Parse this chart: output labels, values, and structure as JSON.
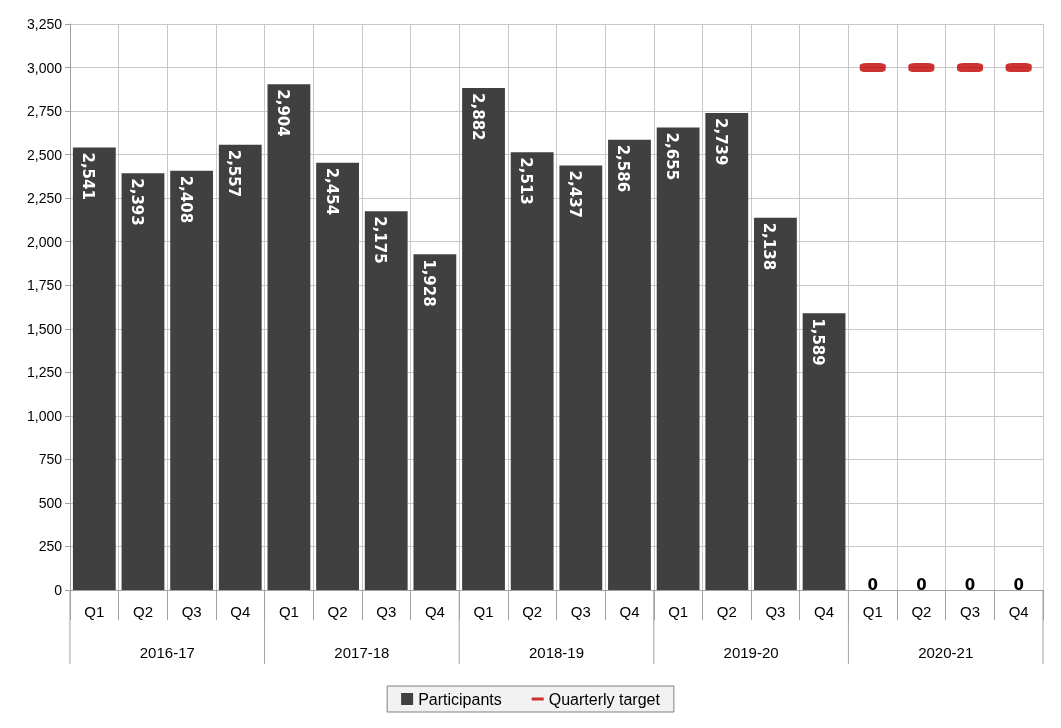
{
  "chart_data": {
    "type": "bar",
    "categories": [
      "Q1",
      "Q2",
      "Q3",
      "Q4",
      "Q1",
      "Q2",
      "Q3",
      "Q4",
      "Q1",
      "Q2",
      "Q3",
      "Q4",
      "Q1",
      "Q2",
      "Q3",
      "Q4",
      "Q1",
      "Q2",
      "Q3",
      "Q4"
    ],
    "series": [
      {
        "name": "Participants",
        "color": "#404040",
        "values": [
          2541,
          2393,
          2408,
          2557,
          2904,
          2454,
          2175,
          1928,
          2882,
          2513,
          2437,
          2586,
          2655,
          2739,
          2138,
          1589,
          0,
          0,
          0,
          0
        ],
        "value_labels": [
          "2,541",
          "2,393",
          "2,408",
          "2,557",
          "2,904",
          "2,454",
          "2,175",
          "1,928",
          "2,882",
          "2,513",
          "2,437",
          "2,586",
          "2,655",
          "2,739",
          "2,138",
          "1,589",
          "0",
          "0",
          "0",
          "0"
        ]
      },
      {
        "name": "Quarterly target",
        "type": "scatter",
        "color": "#c00000",
        "values": [
          null,
          null,
          null,
          null,
          null,
          null,
          null,
          null,
          null,
          null,
          null,
          null,
          null,
          null,
          null,
          null,
          3000,
          3000,
          3000,
          3000
        ]
      }
    ],
    "annotations": [
      "2016-17",
      "2017-18",
      "2018-19",
      "2019-20",
      "2020-21"
    ],
    "ylim": [
      0,
      3250
    ],
    "yticks": [
      0,
      250,
      500,
      750,
      {
        "value": 1000,
        "label": "1,000"
      },
      {
        "value": 1250,
        "label": "1,250"
      },
      {
        "value": 1500,
        "label": "1,500"
      },
      {
        "value": 1750,
        "label": "1,750"
      },
      {
        "value": 2000,
        "label": "2,000"
      },
      {
        "value": 2250,
        "label": "2,250"
      },
      {
        "value": 2500,
        "label": "2,500"
      },
      {
        "value": 2750,
        "label": "2,750"
      },
      {
        "value": 3000,
        "label": "3,000"
      },
      {
        "value": 3250,
        "label": "3,250"
      }
    ],
    "grid": true,
    "legend": "bottom"
  }
}
